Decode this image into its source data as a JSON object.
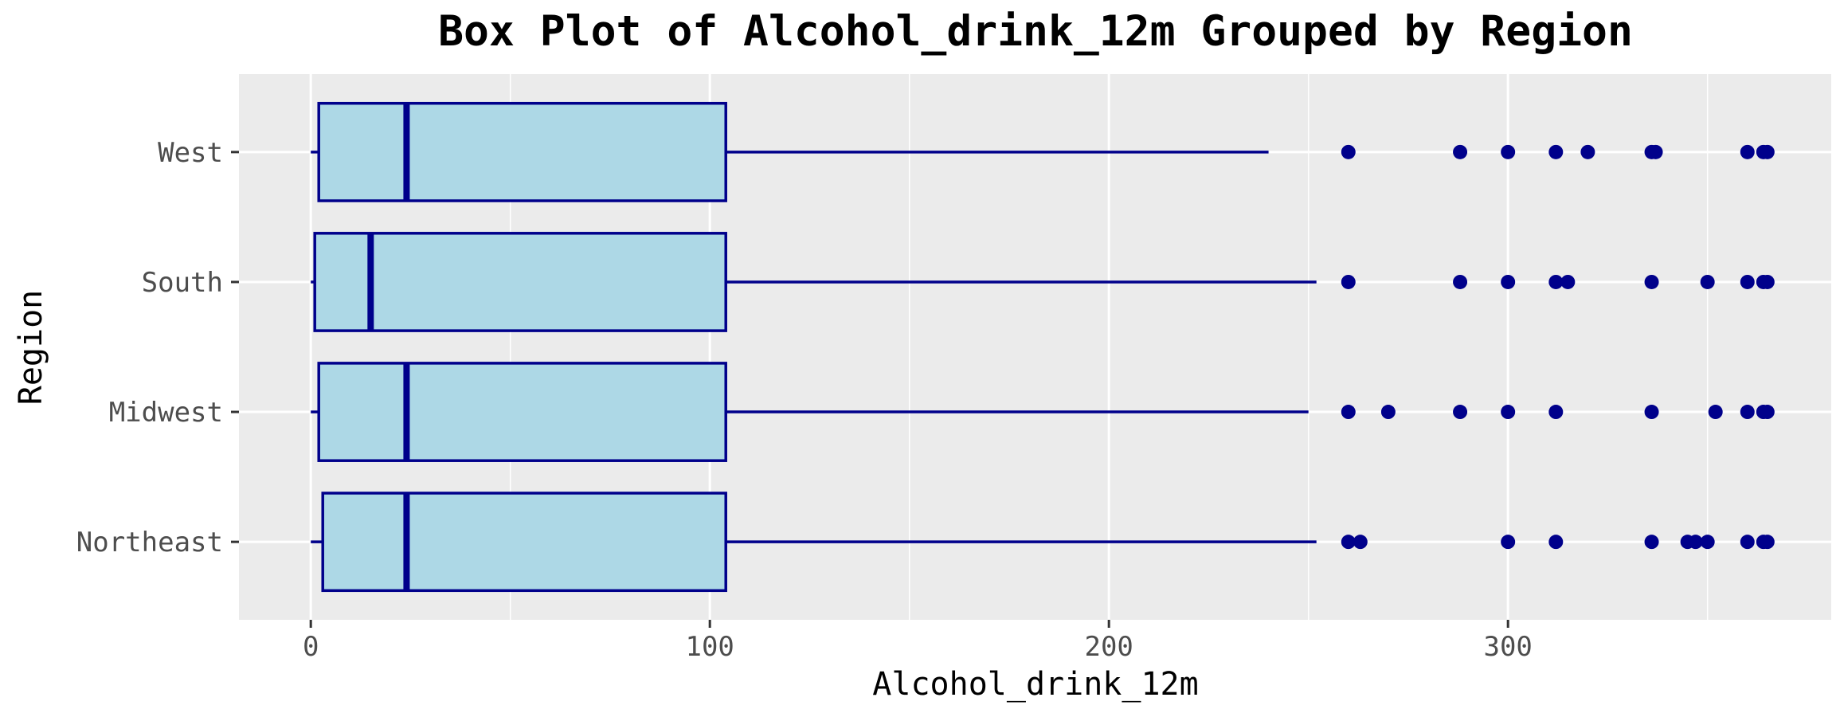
{
  "chart_data": {
    "type": "box",
    "title": "Box Plot of Alcohol_drink_12m Grouped by Region",
    "xlabel": "Alcohol_drink_12m",
    "ylabel": "Region",
    "xlim": [
      -18,
      381
    ],
    "x_ticks": [
      0,
      100,
      200,
      300
    ],
    "x_tick_labels": [
      "0",
      "100",
      "200",
      "300"
    ],
    "grid": true,
    "legend": "none",
    "colors": {
      "panel": "#ebebeb",
      "grid": "#ffffff",
      "box_fill": "#add8e6",
      "box_stroke": "#00008b",
      "outlier": "#00008b",
      "tick": "#333333"
    },
    "categories": [
      "Northeast",
      "Midwest",
      "South",
      "West"
    ],
    "boxes": [
      {
        "category": "Northeast",
        "min": 0,
        "q1": 3,
        "median": 24,
        "q3": 104,
        "max": 252,
        "outliers": [
          260,
          263,
          300,
          312,
          336,
          345,
          347,
          350,
          360,
          364,
          365
        ]
      },
      {
        "category": "Midwest",
        "min": 0,
        "q1": 2,
        "median": 24,
        "q3": 104,
        "max": 250,
        "outliers": [
          260,
          270,
          288,
          300,
          312,
          336,
          352,
          360,
          364,
          365
        ]
      },
      {
        "category": "South",
        "min": 0,
        "q1": 1,
        "median": 15,
        "q3": 104,
        "max": 252,
        "outliers": [
          260,
          288,
          300,
          312,
          315,
          336,
          350,
          360,
          364,
          365
        ]
      },
      {
        "category": "West",
        "min": 0,
        "q1": 2,
        "median": 24,
        "q3": 104,
        "max": 240,
        "outliers": [
          260,
          288,
          300,
          312,
          320,
          336,
          337,
          360,
          364,
          365
        ]
      }
    ]
  }
}
